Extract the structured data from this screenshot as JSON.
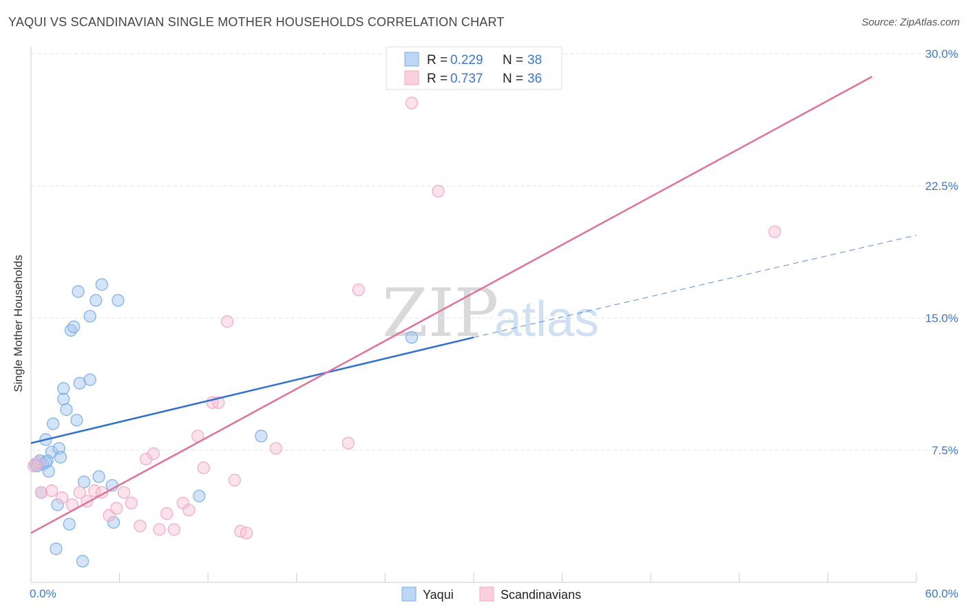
{
  "header": {
    "title": "YAQUI VS SCANDINAVIAN SINGLE MOTHER HOUSEHOLDS CORRELATION CHART",
    "source": "Source: ZipAtlas.com"
  },
  "watermark": {
    "zip": "ZIP",
    "atlas": "atlas"
  },
  "chart_data": {
    "type": "scatter",
    "title": "YAQUI VS SCANDINAVIAN SINGLE MOTHER HOUSEHOLDS CORRELATION CHART",
    "xlabel": "",
    "ylabel": "Single Mother Households",
    "xlim": [
      0,
      60
    ],
    "ylim": [
      0,
      30
    ],
    "x_tick_labels": {
      "min": "0.0%",
      "max": "60.0%"
    },
    "y_ticks": [
      {
        "value": 7.5,
        "label": "7.5%"
      },
      {
        "value": 15.0,
        "label": "15.0%"
      },
      {
        "value": 22.5,
        "label": "22.5%"
      },
      {
        "value": 30.0,
        "label": "30.0%"
      }
    ],
    "grid": true,
    "legend_position": "top-center",
    "series": [
      {
        "name": "Yaqui",
        "color": "#7aaee8",
        "line_color": "#2f6fcf",
        "stats": {
          "r_label": "R = ",
          "r": "0.229",
          "n_label": "N = ",
          "n": "38"
        },
        "trend": {
          "x0": 0,
          "y0": 7.9,
          "x1": 30,
          "y1": 13.9,
          "x_dash_end": 60,
          "y_dash_end": 19.7
        },
        "points": [
          [
            0.3,
            6.7
          ],
          [
            0.5,
            6.8
          ],
          [
            0.6,
            6.9
          ],
          [
            0.8,
            6.7
          ],
          [
            0.7,
            5.1
          ],
          [
            1.0,
            8.1
          ],
          [
            1.0,
            6.8
          ],
          [
            1.2,
            6.3
          ],
          [
            1.4,
            7.4
          ],
          [
            1.5,
            9.0
          ],
          [
            1.8,
            4.4
          ],
          [
            1.9,
            7.6
          ],
          [
            2.0,
            7.1
          ],
          [
            1.7,
            1.9
          ],
          [
            2.2,
            10.4
          ],
          [
            2.2,
            11.0
          ],
          [
            2.4,
            9.8
          ],
          [
            2.7,
            14.3
          ],
          [
            2.9,
            14.5
          ],
          [
            3.1,
            9.2
          ],
          [
            3.2,
            16.5
          ],
          [
            3.3,
            11.3
          ],
          [
            3.5,
            1.2
          ],
          [
            3.6,
            5.7
          ],
          [
            4.0,
            11.5
          ],
          [
            4.0,
            15.1
          ],
          [
            4.4,
            16.0
          ],
          [
            4.6,
            6.0
          ],
          [
            4.8,
            16.9
          ],
          [
            5.5,
            5.5
          ],
          [
            5.6,
            3.4
          ],
          [
            5.9,
            16.0
          ],
          [
            2.6,
            3.3
          ],
          [
            11.4,
            4.9
          ],
          [
            15.6,
            8.3
          ],
          [
            25.8,
            13.9
          ],
          [
            0.4,
            6.6
          ],
          [
            1.1,
            6.9
          ]
        ]
      },
      {
        "name": "Scandinavians",
        "color": "#f4a7bf",
        "line_color": "#e2709a",
        "stats": {
          "r_label": "R = ",
          "r": "0.737",
          "n_label": "N = ",
          "n": "36"
        },
        "trend": {
          "x0": 0,
          "y0": 2.8,
          "x1": 57,
          "y1": 28.7
        },
        "points": [
          [
            0.2,
            6.6
          ],
          [
            0.5,
            6.8
          ],
          [
            0.7,
            5.1
          ],
          [
            1.4,
            5.2
          ],
          [
            2.1,
            4.8
          ],
          [
            2.8,
            4.4
          ],
          [
            3.3,
            5.1
          ],
          [
            3.8,
            4.6
          ],
          [
            4.3,
            5.2
          ],
          [
            4.8,
            5.1
          ],
          [
            5.3,
            3.8
          ],
          [
            5.8,
            4.2
          ],
          [
            6.3,
            5.1
          ],
          [
            6.8,
            4.5
          ],
          [
            7.4,
            3.2
          ],
          [
            7.8,
            7.0
          ],
          [
            8.3,
            7.3
          ],
          [
            8.7,
            3.0
          ],
          [
            9.2,
            3.9
          ],
          [
            9.7,
            3.0
          ],
          [
            10.3,
            4.5
          ],
          [
            10.7,
            4.1
          ],
          [
            11.3,
            8.3
          ],
          [
            11.7,
            6.5
          ],
          [
            12.3,
            10.2
          ],
          [
            12.7,
            10.2
          ],
          [
            13.3,
            14.8
          ],
          [
            13.8,
            5.8
          ],
          [
            14.2,
            2.9
          ],
          [
            14.6,
            2.8
          ],
          [
            16.6,
            7.6
          ],
          [
            21.5,
            7.9
          ],
          [
            22.2,
            16.6
          ],
          [
            25.8,
            27.2
          ],
          [
            27.6,
            22.2
          ],
          [
            50.4,
            19.9
          ]
        ]
      }
    ]
  }
}
